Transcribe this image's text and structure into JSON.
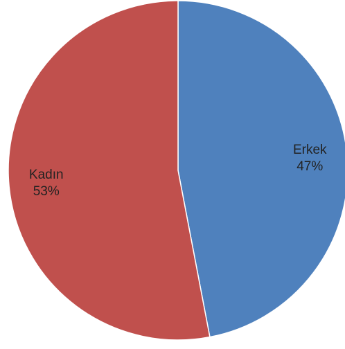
{
  "chart_data": {
    "type": "pie",
    "title": "",
    "slices": [
      {
        "label": "Erkek",
        "value": 47,
        "value_label": "47%",
        "color": "#4F81BD"
      },
      {
        "label": "Kadın",
        "value": 53,
        "value_label": "53%",
        "color": "#C0504D"
      }
    ],
    "start": "12 o'clock",
    "direction": "clockwise",
    "slice_border_color": "#FFFFFF",
    "legend": "none"
  }
}
